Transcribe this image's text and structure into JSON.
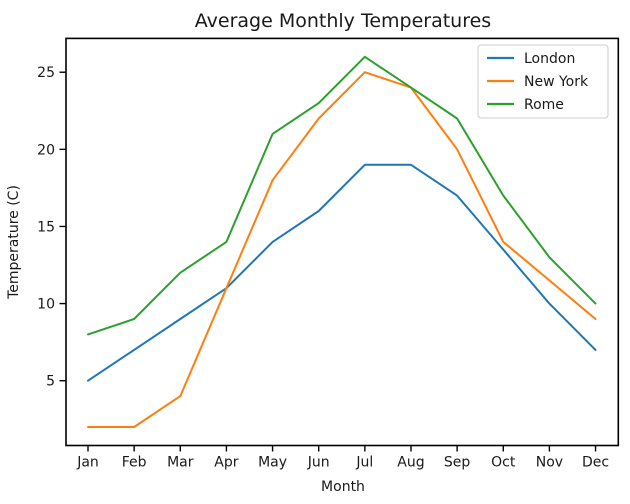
{
  "chart_data": {
    "type": "line",
    "title": "Average Monthly Temperatures",
    "xlabel": "Month",
    "ylabel": "Temperature (C)",
    "categories": [
      "Jan",
      "Feb",
      "Mar",
      "Apr",
      "May",
      "Jun",
      "Jul",
      "Aug",
      "Sep",
      "Oct",
      "Nov",
      "Dec"
    ],
    "yticks": [
      5,
      10,
      15,
      20,
      25
    ],
    "ylim": [
      0.8,
      27.2
    ],
    "grid": false,
    "legend_position": "upper right",
    "series": [
      {
        "name": "London",
        "color": "#1f77b4",
        "values": [
          5,
          7,
          9,
          11,
          14,
          16,
          19,
          19,
          17,
          13.5,
          10,
          7
        ]
      },
      {
        "name": "New York",
        "color": "#ff7f0e",
        "values": [
          2,
          2,
          4,
          11,
          18,
          22,
          25,
          24,
          20,
          14,
          11.5,
          9
        ]
      },
      {
        "name": "Rome",
        "color": "#2ca02c",
        "values": [
          8,
          9,
          12,
          14,
          21,
          23,
          26,
          24,
          22,
          17,
          13,
          10
        ]
      }
    ],
    "axis_color": "#000000",
    "legend_border_color": "#cccccc"
  }
}
